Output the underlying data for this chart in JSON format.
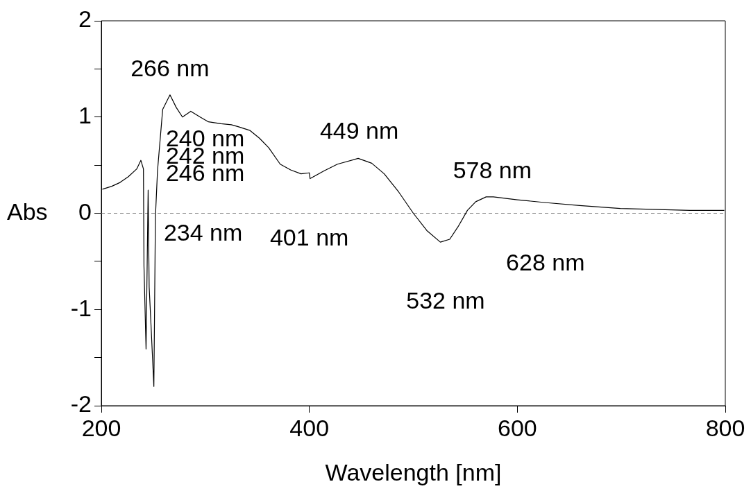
{
  "chart_data": {
    "type": "line",
    "xlabel": "Wavelength [nm]",
    "ylabel": "Abs",
    "xlim": [
      200,
      800
    ],
    "xticks": [
      200,
      400,
      600,
      800
    ],
    "ylim": [
      -2,
      2
    ],
    "yticks": [
      -2,
      {
        "value": -1.5,
        "label": null
      },
      -1,
      {
        "value": -0.5,
        "label": null
      },
      0,
      {
        "value": 0.5,
        "label": null
      },
      1,
      {
        "value": 1.5,
        "label": null
      },
      2
    ],
    "grid": false,
    "legend": false,
    "marker": "none",
    "line_style": "solid",
    "ref_lines": [
      {
        "axis": "y",
        "value": 0,
        "line_style": "dashed",
        "color": "#808080"
      }
    ],
    "series": [
      {
        "color": "#000000",
        "x": [
          201,
          210,
          218,
          226,
          234,
          238,
          240.5,
          241,
          243,
          245,
          246,
          247.5,
          250.5,
          252,
          254,
          259,
          266,
          272,
          278,
          286,
          295,
          303,
          315,
          325,
          331.5,
          343,
          352,
          361,
          372,
          382,
          392,
          400,
          400.7,
          414,
          427,
          447,
          460,
          472,
          486,
          500,
          513,
          526,
          535,
          543,
          552,
          560,
          570,
          577,
          600,
          628,
          660,
          699,
          730,
          766,
          799
        ],
        "values": [
          0.25,
          0.28,
          0.32,
          0.38,
          0.46,
          0.55,
          0.46,
          -0.55,
          -1.41,
          0.24,
          -0.77,
          -1.1,
          -1.8,
          -0.04,
          0.44,
          1.08,
          1.23,
          1.1,
          1.0,
          1.06,
          1.0,
          0.95,
          0.93,
          0.92,
          0.9,
          0.86,
          0.78,
          0.68,
          0.51,
          0.45,
          0.41,
          0.42,
          0.36,
          0.44,
          0.51,
          0.57,
          0.52,
          0.41,
          0.22,
          0.0,
          -0.18,
          -0.3,
          -0.27,
          -0.14,
          0.03,
          0.12,
          0.17,
          0.17,
          0.14,
          0.11,
          0.08,
          0.05,
          0.04,
          0.03,
          0.03
        ]
      }
    ],
    "annotations": [
      "266 nm",
      "240 nm",
      "242 nm",
      "246 nm",
      "234 nm",
      "401 nm",
      "449 nm",
      "578 nm",
      "532 nm",
      "628 nm"
    ]
  }
}
